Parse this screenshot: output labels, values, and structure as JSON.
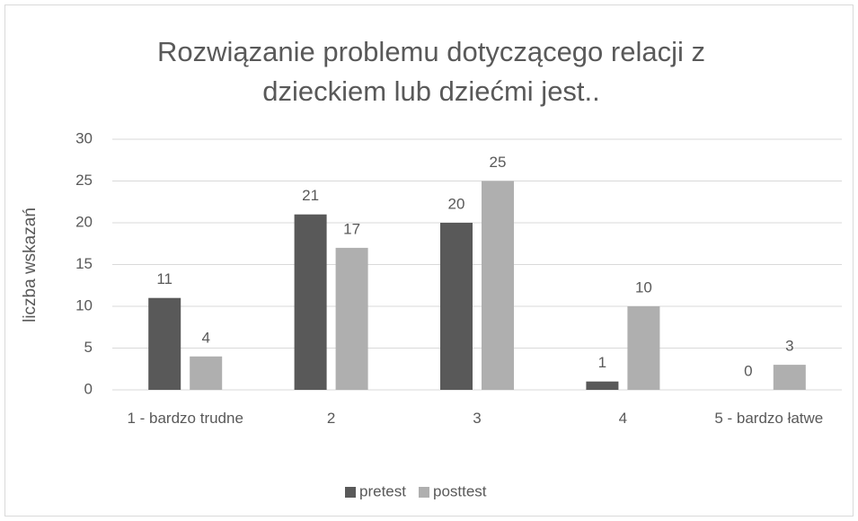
{
  "chart_data": {
    "type": "bar",
    "title": "Rozwiązanie problemu dotyczącego relacji z dzieckiem lub dziećmi jest..",
    "y_label": "liczba wskazań",
    "categories": [
      "1 - bardzo trudne",
      "2",
      "3",
      "4",
      "5 - bardzo łatwe"
    ],
    "series": [
      {
        "name": "pretest",
        "color": "#595959",
        "values": [
          11,
          21,
          20,
          1,
          0
        ]
      },
      {
        "name": "posttest",
        "color": "#afafaf",
        "values": [
          4,
          17,
          25,
          10,
          3
        ]
      }
    ],
    "ylim": [
      0,
      30
    ],
    "yticks": [
      0,
      5,
      10,
      15,
      20,
      25,
      30
    ],
    "grid": true,
    "legend": "bottom"
  }
}
